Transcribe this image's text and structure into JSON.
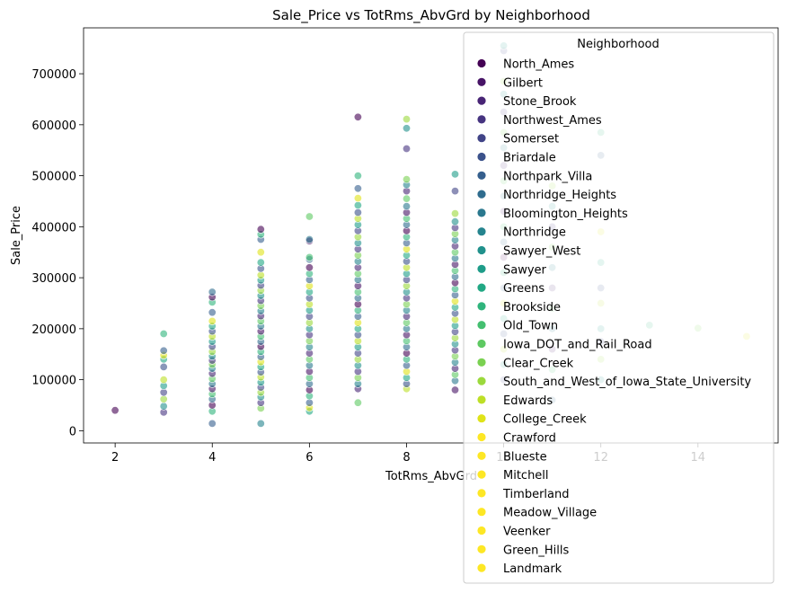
{
  "chart_data": {
    "type": "scatter",
    "title": "Sale_Price vs TotRms_AbvGrd by Neighborhood",
    "xlabel": "TotRms_AbvGrd",
    "ylabel": "Sale_Price",
    "xlim": [
      1.35,
      15.65
    ],
    "ylim": [
      -24000,
      790000
    ],
    "xticks": [
      2,
      4,
      6,
      8,
      10,
      12,
      14
    ],
    "yticks": [
      0,
      100000,
      200000,
      300000,
      400000,
      500000,
      600000,
      700000
    ],
    "grid": false,
    "legend": {
      "title": "Neighborhood",
      "placement": "upper-right",
      "entries": [
        {
          "name": "North_Ames",
          "color": "#440154"
        },
        {
          "name": "Gilbert",
          "color": "#471466"
        },
        {
          "name": "Stone_Brook",
          "color": "#482475"
        },
        {
          "name": "Northwest_Ames",
          "color": "#463480"
        },
        {
          "name": "Somerset",
          "color": "#414487"
        },
        {
          "name": "Briardale",
          "color": "#3b528b"
        },
        {
          "name": "Northpark_Villa",
          "color": "#355f8d"
        },
        {
          "name": "Northridge_Heights",
          "color": "#2f6c8e"
        },
        {
          "name": "Bloomington_Heights",
          "color": "#2a788e"
        },
        {
          "name": "Northridge",
          "color": "#25848e"
        },
        {
          "name": "Sawyer_West",
          "color": "#21918c"
        },
        {
          "name": "Sawyer",
          "color": "#1e9c89"
        },
        {
          "name": "Greens",
          "color": "#22a884"
        },
        {
          "name": "Brookside",
          "color": "#2fb47c"
        },
        {
          "name": "Old_Town",
          "color": "#44bf70"
        },
        {
          "name": "Iowa_DOT_and_Rail_Road",
          "color": "#5ec962"
        },
        {
          "name": "Clear_Creek",
          "color": "#7ad151"
        },
        {
          "name": "South_and_West_of_Iowa_State_University",
          "color": "#9bd93c"
        },
        {
          "name": "Edwards",
          "color": "#bddf26"
        },
        {
          "name": "College_Creek",
          "color": "#dfe318"
        },
        {
          "name": "Crawford",
          "color": "#fde725"
        },
        {
          "name": "Blueste",
          "color": "#fde725"
        },
        {
          "name": "Mitchell",
          "color": "#fde725"
        },
        {
          "name": "Timberland",
          "color": "#fde725"
        },
        {
          "name": "Meadow_Village",
          "color": "#fde725"
        },
        {
          "name": "Veenker",
          "color": "#fde725"
        },
        {
          "name": "Green_Hills",
          "color": "#fde725"
        },
        {
          "name": "Landmark",
          "color": "#fde725"
        }
      ]
    },
    "point_alpha": 0.6,
    "series": [
      {
        "x": 2,
        "values": [
          40000
        ]
      },
      {
        "x": 3,
        "values": [
          36000,
          48000,
          62000,
          75000,
          88000,
          100000,
          125000,
          140000,
          148000,
          157000,
          190000
        ]
      },
      {
        "x": 4,
        "values": [
          14000,
          38000,
          50000,
          62000,
          72000,
          82000,
          92000,
          102000,
          112000,
          122000,
          130000,
          138000,
          146000,
          155000,
          165000,
          175000,
          185000,
          195000,
          205000,
          215000,
          232000,
          252000,
          262000,
          272000
        ]
      },
      {
        "x": 5,
        "values": [
          14000,
          44000,
          55000,
          66000,
          75000,
          85000,
          95000,
          105000,
          115000,
          125000,
          135000,
          145000,
          155000,
          165000,
          175000,
          185000,
          195000,
          205000,
          215000,
          225000,
          235000,
          245000,
          255000,
          265000,
          275000,
          285000,
          295000,
          305000,
          318000,
          330000,
          350000,
          375000,
          385000,
          395000
        ]
      },
      {
        "x": 6,
        "values": [
          38000,
          45000,
          55000,
          68000,
          80000,
          92000,
          104000,
          116000,
          128000,
          140000,
          152000,
          164000,
          176000,
          188000,
          200000,
          212000,
          224000,
          236000,
          248000,
          260000,
          272000,
          284000,
          296000,
          308000,
          320000,
          336000,
          340000,
          372000,
          375000,
          420000
        ]
      },
      {
        "x": 7,
        "values": [
          55000,
          82000,
          92000,
          104000,
          116000,
          128000,
          140000,
          152000,
          164000,
          176000,
          188000,
          200000,
          212000,
          224000,
          236000,
          248000,
          260000,
          272000,
          284000,
          296000,
          308000,
          320000,
          332000,
          344000,
          356000,
          368000,
          380000,
          392000,
          404000,
          416000,
          428000,
          442000,
          456000,
          475000,
          500000,
          615000
        ]
      },
      {
        "x": 8,
        "values": [
          82000,
          92000,
          104000,
          116000,
          128000,
          140000,
          152000,
          164000,
          176000,
          188000,
          200000,
          212000,
          224000,
          236000,
          248000,
          260000,
          272000,
          284000,
          296000,
          308000,
          320000,
          332000,
          344000,
          356000,
          368000,
          380000,
          392000,
          404000,
          416000,
          428000,
          440000,
          455000,
          470000,
          482000,
          493000,
          553000,
          593000,
          611000
        ]
      },
      {
        "x": 9,
        "values": [
          80000,
          98000,
          110000,
          122000,
          134000,
          146000,
          158000,
          170000,
          182000,
          194000,
          206000,
          218000,
          230000,
          242000,
          254000,
          266000,
          278000,
          290000,
          302000,
          314000,
          326000,
          338000,
          350000,
          362000,
          374000,
          386000,
          398000,
          410000,
          426000,
          470000,
          503000
        ]
      },
      {
        "x": 10,
        "values": [
          100000,
          130000,
          160000,
          190000,
          220000,
          250000,
          280000,
          310000,
          340000,
          370000,
          400000,
          430000,
          460000,
          490000,
          520000,
          555000,
          585000,
          625000,
          660000,
          685000,
          745000,
          755000
        ]
      },
      {
        "x": 11,
        "values": [
          60000,
          120000,
          160000,
          200000,
          240000,
          280000,
          320000,
          360000,
          400000,
          440000,
          480000
        ]
      },
      {
        "x": 12,
        "values": [
          100000,
          140000,
          175000,
          200000,
          250000,
          280000,
          330000,
          390000,
          540000,
          585000
        ]
      },
      {
        "x": 13,
        "values": [
          207000
        ]
      },
      {
        "x": 14,
        "values": [
          201000
        ]
      },
      {
        "x": 15,
        "values": [
          185000
        ]
      }
    ]
  }
}
